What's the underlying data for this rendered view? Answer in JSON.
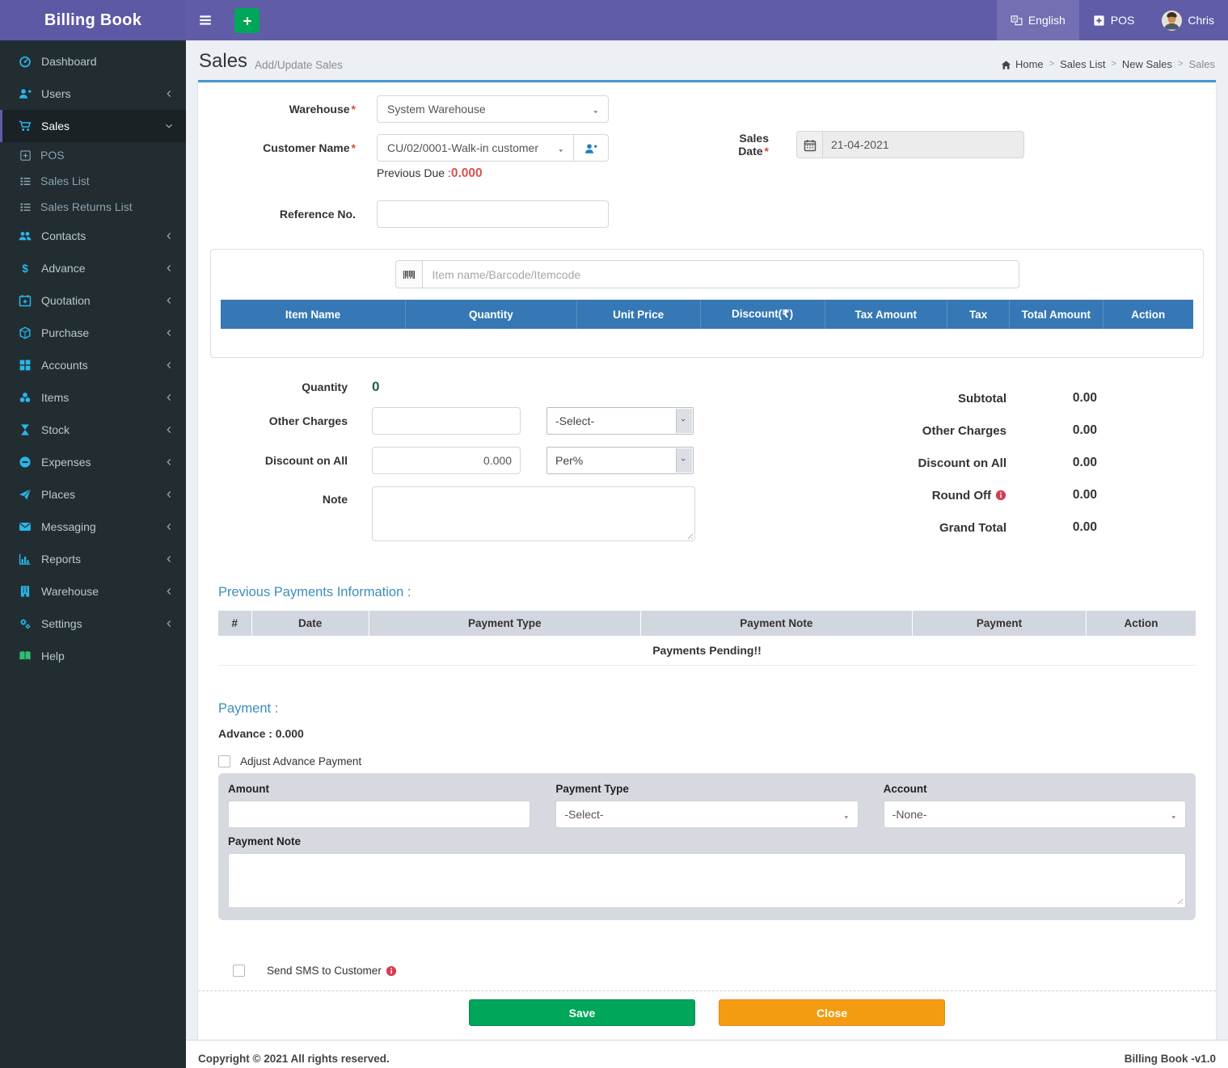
{
  "app": {
    "name": "Billing Book",
    "version_label": "Billing Book -v1.0",
    "copyright": "Copyright © 2021 All rights reserved."
  },
  "header": {
    "language_label": "English",
    "pos_label": "POS",
    "username": "Chris"
  },
  "sidebar": {
    "items": [
      {
        "label": "Dashboard",
        "icon": "dashboard-icon"
      },
      {
        "label": "Users",
        "icon": "user-plus-icon",
        "chevron": "left"
      },
      {
        "label": "Sales",
        "icon": "cart-icon",
        "chevron": "down",
        "active": true,
        "children": [
          {
            "label": "POS",
            "icon": "plus-square-outline-icon"
          },
          {
            "label": "Sales List",
            "icon": "list-icon"
          },
          {
            "label": "Sales Returns List",
            "icon": "list-icon"
          }
        ]
      },
      {
        "label": "Contacts",
        "icon": "people-icon",
        "chevron": "left"
      },
      {
        "label": "Advance",
        "icon": "dollar-icon",
        "chevron": "left"
      },
      {
        "label": "Quotation",
        "icon": "calendar-plus-icon",
        "chevron": "left"
      },
      {
        "label": "Purchase",
        "icon": "cube-icon",
        "chevron": "left"
      },
      {
        "label": "Accounts",
        "icon": "grid-icon",
        "chevron": "left"
      },
      {
        "label": "Items",
        "icon": "items-icon",
        "chevron": "left"
      },
      {
        "label": "Stock",
        "icon": "hourglass-icon",
        "chevron": "left"
      },
      {
        "label": "Expenses",
        "icon": "minus-circle-icon",
        "chevron": "left"
      },
      {
        "label": "Places",
        "icon": "paper-plane-icon",
        "chevron": "left"
      },
      {
        "label": "Messaging",
        "icon": "envelope-icon",
        "chevron": "left"
      },
      {
        "label": "Reports",
        "icon": "bar-chart-icon",
        "chevron": "left"
      },
      {
        "label": "Warehouse",
        "icon": "warehouse-icon",
        "chevron": "left"
      },
      {
        "label": "Settings",
        "icon": "gears-icon",
        "chevron": "left"
      },
      {
        "label": "Help",
        "icon": "book-icon",
        "icon_color": "#2fbf71"
      }
    ]
  },
  "page": {
    "title": "Sales",
    "subtitle": "Add/Update Sales",
    "breadcrumb": [
      "Home",
      "Sales List",
      "New Sales",
      "Sales"
    ]
  },
  "form": {
    "required_mark": "*",
    "warehouse_label": "Warehouse",
    "warehouse_value": "System Warehouse",
    "customer_label": "Customer Name",
    "customer_value": "CU/02/0001-Walk-in customer",
    "previous_due_label": "Previous Due :",
    "previous_due_value": "0.000",
    "sales_date_label": "Sales Date",
    "sales_date_value": "21-04-2021",
    "reference_label": "Reference No."
  },
  "items_section": {
    "search_placeholder": "Item name/Barcode/Itemcode",
    "columns": [
      "Item Name",
      "Quantity",
      "Unit Price",
      "Discount(₹)",
      "Tax Amount",
      "Tax",
      "Total Amount",
      "Action"
    ]
  },
  "mid": {
    "quantity_label": "Quantity",
    "quantity_value": "0",
    "other_charges_label": "Other Charges",
    "other_charges_select_value": "-Select-",
    "discount_label": "Discount on All",
    "discount_value": "0.000",
    "discount_unit_value": "Per%",
    "note_label": "Note"
  },
  "totals": {
    "rows": [
      {
        "label": "Subtotal",
        "value": "0.00"
      },
      {
        "label": "Other Charges",
        "value": "0.00"
      },
      {
        "label": "Discount on All",
        "value": "0.00"
      },
      {
        "label": "Round Off",
        "value": "0.00",
        "info": true
      },
      {
        "label": "Grand Total",
        "value": "0.00"
      }
    ]
  },
  "previous_payments": {
    "heading": "Previous Payments Information :",
    "columns": [
      "#",
      "Date",
      "Payment Type",
      "Payment Note",
      "Payment",
      "Action"
    ],
    "empty_text": "Payments Pending!!"
  },
  "payment": {
    "heading": "Payment :",
    "advance_label": "Advance : 0.000",
    "adjust_label": "Adjust Advance Payment",
    "amount_label": "Amount",
    "type_label": "Payment Type",
    "type_value": "-Select-",
    "account_label": "Account",
    "account_value": "-None-",
    "note_label": "Payment Note"
  },
  "sms_label": "Send SMS to Customer",
  "actions": {
    "save": "Save",
    "close": "Close"
  },
  "colors": {
    "header_purple": "#605ca8",
    "accent_blue": "#3c8dbc",
    "table_header_blue": "#3578b5",
    "sidebar_dark": "#222d32",
    "sidebar_icon_cyan": "#29b6ea",
    "green": "#00a65a",
    "orange": "#f39c12",
    "red": "#dd4b39"
  }
}
